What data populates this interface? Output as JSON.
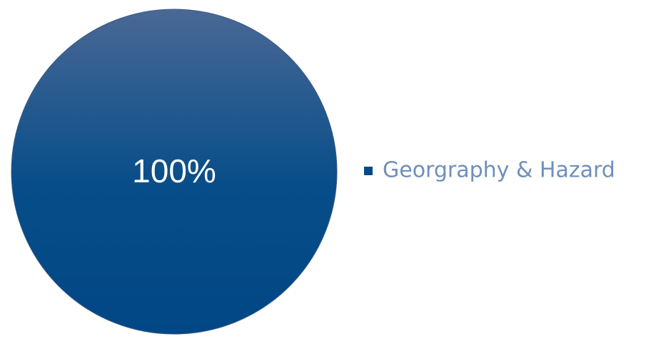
{
  "chart_data": {
    "type": "pie",
    "categories": [
      "Georgraphy & Hazard"
    ],
    "values": [
      100
    ],
    "value_labels": [
      "100%"
    ],
    "colors": [
      "#034a87"
    ],
    "legend": "right"
  }
}
